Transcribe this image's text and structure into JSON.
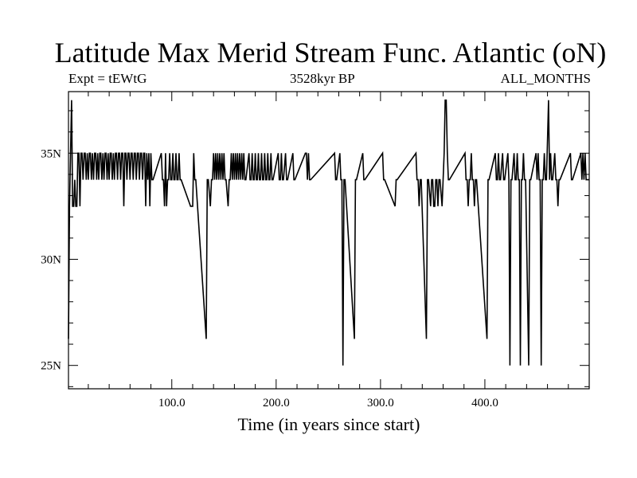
{
  "chart_data": {
    "type": "line",
    "title": "Latitude Max Merid Stream Func. Atlantic (oN)",
    "subtitle_left": "Expt = tEWtG",
    "subtitle_center": "3528kyr BP",
    "subtitle_right": "ALL_MONTHS",
    "xlabel": "Time (in years since start)",
    "ylabel": "",
    "xlim": [
      1,
      500
    ],
    "ylim": [
      23.9,
      37.9
    ],
    "xticks": [
      {
        "value": 100,
        "label": "100.0"
      },
      {
        "value": 200,
        "label": "200.0"
      },
      {
        "value": 300,
        "label": "300.0"
      },
      {
        "value": 400,
        "label": "400.0"
      }
    ],
    "yticks": [
      {
        "value": 25,
        "label": "25N"
      },
      {
        "value": 30,
        "label": "30N"
      },
      {
        "value": 35,
        "label": "35N"
      }
    ],
    "baseline": 33.75,
    "high_level": 35.0,
    "low_level": 32.5,
    "series": [
      {
        "name": "Latitude Max Merid Stream Func. Atlantic",
        "events": [
          [
            1,
            26.25
          ],
          [
            2,
            32.5
          ],
          [
            3,
            35
          ],
          [
            4,
            37.5
          ],
          [
            5,
            32.5
          ],
          [
            7,
            33.75
          ],
          [
            8,
            32.5
          ],
          [
            10,
            35
          ],
          [
            12,
            32.5
          ],
          [
            13,
            35
          ],
          [
            15,
            33.75
          ],
          [
            16,
            35
          ],
          [
            18,
            33.75
          ],
          [
            19,
            35
          ],
          [
            20,
            33.75
          ],
          [
            21,
            35
          ],
          [
            23,
            33.75
          ],
          [
            24,
            35
          ],
          [
            25,
            33.75
          ],
          [
            26,
            35
          ],
          [
            28,
            33.75
          ],
          [
            29,
            35
          ],
          [
            30,
            33.75
          ],
          [
            31,
            35
          ],
          [
            33,
            33.75
          ],
          [
            34,
            35
          ],
          [
            35,
            33.75
          ],
          [
            36,
            35
          ],
          [
            38,
            33.75
          ],
          [
            39,
            35
          ],
          [
            40,
            33.75
          ],
          [
            41,
            35
          ],
          [
            43,
            33.75
          ],
          [
            44,
            35
          ],
          [
            45,
            33.75
          ],
          [
            46,
            35
          ],
          [
            48,
            33.75
          ],
          [
            49,
            35
          ],
          [
            51,
            33.75
          ],
          [
            52,
            35
          ],
          [
            54,
            32.5
          ],
          [
            55,
            35
          ],
          [
            57,
            33.75
          ],
          [
            58,
            35
          ],
          [
            60,
            33.75
          ],
          [
            61,
            35
          ],
          [
            63,
            33.75
          ],
          [
            64,
            35
          ],
          [
            66,
            33.75
          ],
          [
            67,
            35
          ],
          [
            69,
            33.75
          ],
          [
            70,
            35
          ],
          [
            72,
            33.75
          ],
          [
            73,
            35
          ],
          [
            75,
            32.5
          ],
          [
            76,
            35
          ],
          [
            77,
            33.75
          ],
          [
            78,
            35
          ],
          [
            79,
            32.5
          ],
          [
            80,
            35
          ],
          [
            81,
            33.75
          ],
          [
            90,
            35
          ],
          [
            91,
            33.75
          ],
          [
            93,
            32.5
          ],
          [
            94,
            35
          ],
          [
            95,
            32.5
          ],
          [
            96,
            33.75
          ],
          [
            98,
            35
          ],
          [
            99,
            33.75
          ],
          [
            101,
            35
          ],
          [
            102,
            33.75
          ],
          [
            104,
            35
          ],
          [
            105,
            33.75
          ],
          [
            107,
            35
          ],
          [
            108,
            33.75
          ],
          [
            118,
            32.5
          ],
          [
            120,
            32.5
          ],
          [
            121,
            35
          ],
          [
            122,
            33.75
          ],
          [
            133,
            26.25
          ],
          [
            134,
            33.75
          ],
          [
            137,
            32.5
          ],
          [
            138,
            33.75
          ],
          [
            140,
            35
          ],
          [
            141,
            33.75
          ],
          [
            142,
            35
          ],
          [
            143,
            33.75
          ],
          [
            144,
            35
          ],
          [
            145,
            33.75
          ],
          [
            146,
            35
          ],
          [
            147,
            33.75
          ],
          [
            148,
            35
          ],
          [
            149,
            33.75
          ],
          [
            150,
            35
          ],
          [
            151,
            33.75
          ],
          [
            154,
            32.5
          ],
          [
            155,
            33.75
          ],
          [
            157,
            35
          ],
          [
            158,
            33.75
          ],
          [
            159,
            35
          ],
          [
            160,
            33.75
          ],
          [
            161,
            35
          ],
          [
            162,
            33.75
          ],
          [
            163,
            35
          ],
          [
            164,
            33.75
          ],
          [
            165,
            35
          ],
          [
            166,
            33.75
          ],
          [
            167,
            35
          ],
          [
            168,
            33.75
          ],
          [
            169,
            35
          ],
          [
            170,
            33.75
          ],
          [
            174,
            35
          ],
          [
            175,
            33.75
          ],
          [
            177,
            35
          ],
          [
            178,
            33.75
          ],
          [
            180,
            35
          ],
          [
            181,
            33.75
          ],
          [
            183,
            35
          ],
          [
            184,
            33.75
          ],
          [
            186,
            35
          ],
          [
            187,
            33.75
          ],
          [
            189,
            35
          ],
          [
            190,
            33.75
          ],
          [
            192,
            35
          ],
          [
            193,
            33.75
          ],
          [
            195,
            35
          ],
          [
            196,
            33.75
          ],
          [
            202,
            35
          ],
          [
            203,
            33.75
          ],
          [
            205,
            35
          ],
          [
            206,
            33.75
          ],
          [
            209,
            35
          ],
          [
            210,
            33.75
          ],
          [
            216,
            35
          ],
          [
            217,
            33.75
          ],
          [
            228,
            35
          ],
          [
            230,
            33.75
          ],
          [
            231,
            35
          ],
          [
            232,
            33.75
          ],
          [
            256,
            35
          ],
          [
            257,
            33.75
          ],
          [
            261,
            35
          ],
          [
            262,
            33.75
          ],
          [
            264,
            25
          ],
          [
            265,
            33.75
          ],
          [
            275,
            26.25
          ],
          [
            276,
            33.75
          ],
          [
            283,
            35
          ],
          [
            284,
            33.75
          ],
          [
            302,
            35
          ],
          [
            303,
            33.75
          ],
          [
            314,
            32.5
          ],
          [
            315,
            33.75
          ],
          [
            334,
            35
          ],
          [
            335,
            33.75
          ],
          [
            337,
            32.5
          ],
          [
            338,
            33.75
          ],
          [
            344,
            26.25
          ],
          [
            345,
            33.75
          ],
          [
            348,
            32.5
          ],
          [
            349,
            33.75
          ],
          [
            351,
            32.5
          ],
          [
            353,
            33.75
          ],
          [
            355,
            32.5
          ],
          [
            356,
            33.75
          ],
          [
            359,
            32.5
          ],
          [
            360,
            33.75
          ],
          [
            361,
            35
          ],
          [
            362,
            37.5
          ],
          [
            364,
            35
          ],
          [
            365,
            33.75
          ],
          [
            381,
            35
          ],
          [
            382,
            33.75
          ],
          [
            384,
            32.5
          ],
          [
            385,
            33.75
          ],
          [
            387,
            35
          ],
          [
            388,
            33.75
          ],
          [
            390,
            32.5
          ],
          [
            391,
            33.75
          ],
          [
            402,
            26.25
          ],
          [
            403,
            33.75
          ],
          [
            410,
            35
          ],
          [
            411,
            33.75
          ],
          [
            413,
            35
          ],
          [
            414,
            33.75
          ],
          [
            417,
            35
          ],
          [
            418,
            33.75
          ],
          [
            422,
            35
          ],
          [
            423,
            33.75
          ],
          [
            424,
            25
          ],
          [
            425,
            33.75
          ],
          [
            428,
            35
          ],
          [
            429,
            33.75
          ],
          [
            431,
            35
          ],
          [
            432,
            33.75
          ],
          [
            434,
            25
          ],
          [
            435,
            33.75
          ],
          [
            437,
            35
          ],
          [
            438,
            33.75
          ],
          [
            442,
            25
          ],
          [
            443,
            33.75
          ],
          [
            449,
            35
          ],
          [
            450,
            33.75
          ],
          [
            451,
            35
          ],
          [
            452,
            33.75
          ],
          [
            454,
            25
          ],
          [
            455,
            33.75
          ],
          [
            457,
            35
          ],
          [
            458,
            33.75
          ],
          [
            461,
            37.5
          ],
          [
            462,
            33.75
          ],
          [
            463,
            35
          ],
          [
            464,
            33.75
          ],
          [
            467,
            35
          ],
          [
            468,
            33.75
          ],
          [
            470,
            32.5
          ],
          [
            471,
            33.75
          ],
          [
            482,
            35
          ],
          [
            483,
            33.75
          ],
          [
            492,
            35
          ],
          [
            493,
            33.75
          ],
          [
            494,
            35
          ],
          [
            495,
            33.75
          ],
          [
            496,
            35
          ],
          [
            497,
            33.75
          ],
          [
            500,
            33.75
          ]
        ]
      }
    ]
  }
}
